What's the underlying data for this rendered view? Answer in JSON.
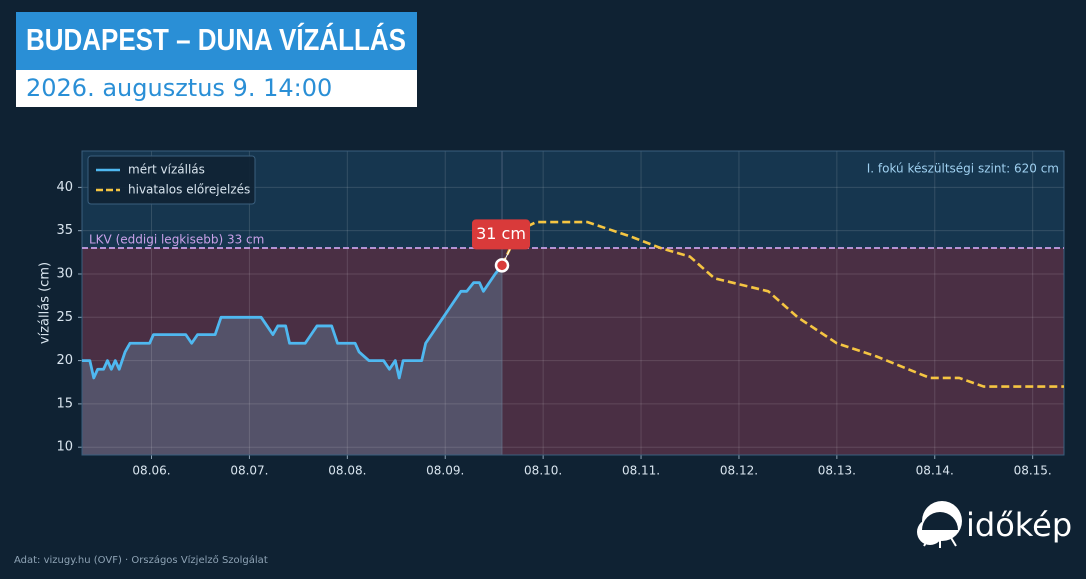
{
  "chart_data": {
    "type": "line",
    "title": "BUDAPEST – DUNA VÍZÁLLÁS",
    "subtitle": "2026. augusztus 9. 14:00",
    "y_label": "vízállás (cm)",
    "annotation": "I. fokú készültségi szint: 620 cm",
    "source": "Adat: vizugy.hu (OVF) · Országos Vízjelző Szolgálat",
    "logo": "időkép",
    "reference_line": {
      "value": 33,
      "label": "LKV (eddigi legkisebb) 33 cm",
      "color": "#c9a0e8"
    },
    "current": {
      "x": 9.58,
      "value": 31,
      "label": "31 cm",
      "color": "#d93a3a"
    },
    "xlim": [
      5.29,
      15.32
    ],
    "ylim": [
      9.1,
      44.2
    ],
    "xticks": [
      {
        "value": 6,
        "label": "08.06."
      },
      {
        "value": 7,
        "label": "08.07."
      },
      {
        "value": 8,
        "label": "08.08."
      },
      {
        "value": 9,
        "label": "08.09."
      },
      {
        "value": 10,
        "label": "08.10."
      },
      {
        "value": 11,
        "label": "08.11."
      },
      {
        "value": 12,
        "label": "08.12."
      },
      {
        "value": 13,
        "label": "08.13."
      },
      {
        "value": 14,
        "label": "08.14."
      },
      {
        "value": 15,
        "label": "08.15."
      }
    ],
    "yticks": [
      10,
      15,
      20,
      25,
      30,
      35,
      40
    ],
    "grid": true,
    "legend": "top-left",
    "series": [
      {
        "name": "mért vízállás",
        "color": "#4fb8f0",
        "style": "solid",
        "x": [
          5.29,
          5.37,
          5.41,
          5.45,
          5.51,
          5.55,
          5.59,
          5.63,
          5.67,
          5.73,
          5.78,
          5.98,
          6.02,
          6.35,
          6.41,
          6.47,
          6.65,
          6.71,
          6.78,
          7.12,
          7.18,
          7.24,
          7.29,
          7.37,
          7.41,
          7.57,
          7.63,
          7.69,
          7.84,
          7.9,
          8.08,
          8.12,
          8.22,
          8.37,
          8.43,
          8.49,
          8.53,
          8.57,
          8.76,
          8.8,
          8.86,
          8.92,
          8.98,
          9.04,
          9.1,
          9.16,
          9.22,
          9.29,
          9.35,
          9.39,
          9.45,
          9.51,
          9.58
        ],
        "values": [
          20,
          20,
          18,
          19,
          19,
          20,
          19,
          20,
          19,
          21,
          22,
          22,
          23,
          23,
          22,
          23,
          23,
          25,
          25,
          25,
          24,
          23,
          24,
          24,
          22,
          22,
          23,
          24,
          24,
          22,
          22,
          21,
          20,
          20,
          19,
          20,
          18,
          20,
          20,
          22,
          23,
          24,
          25,
          26,
          27,
          28,
          28,
          29,
          29,
          28,
          29,
          30,
          31
        ]
      },
      {
        "name": "hivatalos előrejelzés",
        "color": "#f5c542",
        "style": "dashed",
        "x": [
          9.58,
          9.75,
          9.93,
          10.45,
          10.9,
          11.2,
          11.5,
          11.75,
          12.3,
          12.6,
          13.0,
          13.4,
          13.95,
          14.25,
          14.5,
          15.32
        ],
        "values": [
          31,
          35,
          36,
          36,
          34.3,
          33,
          32,
          29.5,
          28,
          25,
          22,
          20.5,
          18,
          18,
          17,
          17
        ]
      }
    ]
  }
}
